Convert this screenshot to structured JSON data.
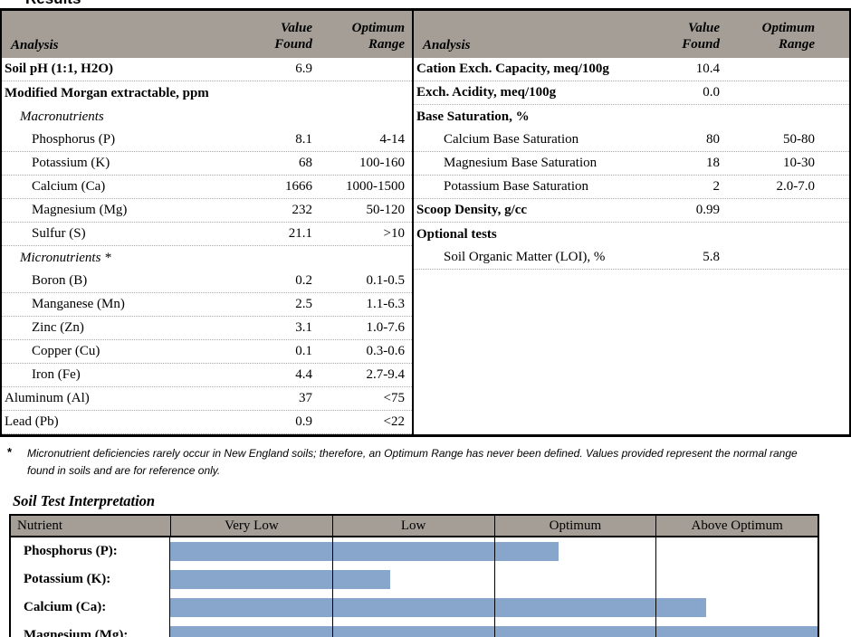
{
  "results": {
    "title": "Results",
    "columns": {
      "analysis": "Analysis",
      "value_found": "Value\nFound",
      "optimum_range": "Optimum\nRange"
    },
    "left_rows": [
      {
        "label": "Soil pH (1:1, H2O)",
        "value": "6.9",
        "range": "",
        "bold": true,
        "indent": 0,
        "sep": true
      },
      {
        "label": "Modified Morgan extractable, ppm",
        "value": "",
        "range": "",
        "bold": true,
        "indent": 0,
        "sep": false
      },
      {
        "label": "Macronutrients",
        "value": "",
        "range": "",
        "italic": true,
        "indent": 1,
        "sep": false
      },
      {
        "label": "Phosphorus (P)",
        "value": "8.1",
        "range": "4-14",
        "indent": 2,
        "sep": true
      },
      {
        "label": "Potassium (K)",
        "value": "68",
        "range": "100-160",
        "indent": 2,
        "sep": true
      },
      {
        "label": "Calcium (Ca)",
        "value": "1666",
        "range": "1000-1500",
        "indent": 2,
        "sep": true
      },
      {
        "label": "Magnesium (Mg)",
        "value": "232",
        "range": "50-120",
        "indent": 2,
        "sep": true
      },
      {
        "label": "Sulfur (S)",
        "value": "21.1",
        "range": ">10",
        "indent": 2,
        "sep": true
      },
      {
        "label": "Micronutrients *",
        "value": "",
        "range": "",
        "italic": true,
        "indent": 1,
        "sep": false
      },
      {
        "label": "Boron (B)",
        "value": "0.2",
        "range": "0.1-0.5",
        "indent": 2,
        "sep": true
      },
      {
        "label": "Manganese (Mn)",
        "value": "2.5",
        "range": "1.1-6.3",
        "indent": 2,
        "sep": true
      },
      {
        "label": "Zinc (Zn)",
        "value": "3.1",
        "range": "1.0-7.6",
        "indent": 2,
        "sep": true
      },
      {
        "label": "Copper (Cu)",
        "value": "0.1",
        "range": "0.3-0.6",
        "indent": 2,
        "sep": true
      },
      {
        "label": "Iron (Fe)",
        "value": "4.4",
        "range": "2.7-9.4",
        "indent": 2,
        "sep": true
      },
      {
        "label": "Aluminum (Al)",
        "value": "37",
        "range": "<75",
        "indent": 0,
        "sep": true
      },
      {
        "label": "Lead (Pb)",
        "value": "0.9",
        "range": "<22",
        "indent": 0,
        "sep": true
      }
    ],
    "right_rows": [
      {
        "label": "Cation Exch. Capacity, meq/100g",
        "value": "10.4",
        "range": "",
        "bold": true,
        "indent": 0,
        "sep": true
      },
      {
        "label": "Exch. Acidity, meq/100g",
        "value": "0.0",
        "range": "",
        "bold": true,
        "indent": 0,
        "sep": true
      },
      {
        "label": "Base Saturation, %",
        "value": "",
        "range": "",
        "bold": true,
        "indent": 0,
        "sep": false
      },
      {
        "label": "Calcium Base Saturation",
        "value": "80",
        "range": "50-80",
        "indent": 2,
        "sep": true
      },
      {
        "label": "Magnesium Base Saturation",
        "value": "18",
        "range": "10-30",
        "indent": 2,
        "sep": true
      },
      {
        "label": "Potassium Base Saturation",
        "value": "2",
        "range": "2.0-7.0",
        "indent": 2,
        "sep": true
      },
      {
        "label": "Scoop Density, g/cc",
        "value": "0.99",
        "range": "",
        "bold": true,
        "indent": 0,
        "sep": true
      },
      {
        "label": "Optional tests",
        "value": "",
        "range": "",
        "bold": true,
        "indent": 0,
        "sep": false
      },
      {
        "label": "Soil Organic Matter (LOI), %",
        "value": "5.8",
        "range": "",
        "indent": 2,
        "sep": true
      }
    ]
  },
  "footnote": {
    "marker": "*",
    "text": "Micronutrient deficiencies rarely occur in New England soils; therefore, an Optimum Range has never been defined. Values provided represent the normal range found in soils and are for reference only."
  },
  "interpretation": {
    "title": "Soil Test Interpretation",
    "columns": [
      "Nutrient",
      "Very Low",
      "Low",
      "Optimum",
      "Above Optimum"
    ],
    "bar_color": "#88A5CC",
    "rows": [
      {
        "label": "Phosphorus (P):",
        "value": 2.4
      },
      {
        "label": "Potassium (K):",
        "value": 1.36
      },
      {
        "label": "Calcium (Ca):",
        "value": 3.31
      },
      {
        "label": "Magnesium (Mg):",
        "value": 4.0
      }
    ]
  },
  "chart_data": {
    "type": "bar",
    "title": "Soil Test Interpretation",
    "categories": [
      "Phosphorus (P)",
      "Potassium (K)",
      "Calcium (Ca)",
      "Magnesium (Mg)"
    ],
    "values": [
      2.4,
      1.36,
      3.31,
      4.0
    ],
    "value_scale_note": "0-4 scale; each unit spans one rating column (0-1 Very Low, 1-2 Low, 2-3 Optimum, 3-4 Above Optimum)",
    "rating_columns": [
      "Very Low",
      "Low",
      "Optimum",
      "Above Optimum"
    ],
    "xlim": [
      0,
      4
    ],
    "bar_color": "#88A5CC",
    "legend": false,
    "grid": "vertical category separators"
  },
  "colors": {
    "header_gray": "#A49E97",
    "bar_blue": "#88A5CC",
    "separator_dotted": "#A8A8A8"
  }
}
